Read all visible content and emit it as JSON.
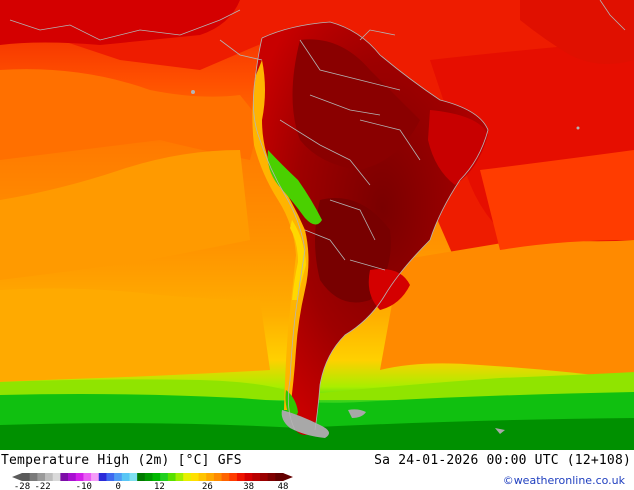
{
  "title": "Temperature High (2m) [°C] GFS",
  "datetime": "Sa 24-01-2026 00:00 UTC (12+108)",
  "credit": "©weatheronline.co.uk",
  "legend": {
    "unit": "°C",
    "ticks": [
      "-28",
      "-22",
      "-10",
      "0",
      "12",
      "26",
      "38",
      "48"
    ],
    "tick_values": [
      -28,
      -22,
      -10,
      0,
      12,
      26,
      38,
      48
    ],
    "colors": [
      "#5a5a5a",
      "#7a7a7a",
      "#9a9a9a",
      "#bdbdbd",
      "#d9d9d9",
      "#7d0ea8",
      "#a80fd1",
      "#d21fea",
      "#ea5cf5",
      "#f59cf8",
      "#2b2bd9",
      "#3f6af0",
      "#4f9cf5",
      "#59c6f5",
      "#7fe0f0",
      "#007a00",
      "#009900",
      "#00b800",
      "#20d020",
      "#58e000",
      "#a0ee00",
      "#e6f000",
      "#ffe000",
      "#ffc400",
      "#ffa800",
      "#ff8a00",
      "#ff6400",
      "#ff3c00",
      "#ee1400",
      "#d40000",
      "#b80000",
      "#9a0000",
      "#7e0000",
      "#640000"
    ]
  },
  "map_colors": {
    "ocean_south": "#ff8c00",
    "ocean_mid": "#ffa000",
    "ocean_north": "#ff5a00",
    "tropics": "#ee1c00",
    "warm_yellow": "#ffc000",
    "cool_green": "#00c400",
    "deep_green": "#009a00",
    "land_hot": "#b40000",
    "land_very_hot": "#8a0000",
    "andes_yellow": "#ffd000",
    "andes_green": "#58d800",
    "borders": "#b4b4b4",
    "antarctic_grey": "#9a9a9a"
  }
}
